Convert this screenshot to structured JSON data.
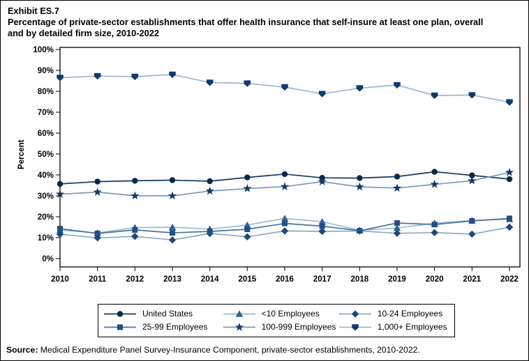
{
  "exhibit_label": "Exhibit ES.7",
  "title_line1": "Percentage of private-sector establishments that offer health insurance that self-insure at least one plan, overall",
  "title_line2": "and by detailed firm size, 2010-2022",
  "source": {
    "label": "Source:",
    "text": " Medical Expenditure Panel Survey-Insurance Component, private-sector establishments, 2010-2022."
  },
  "chart_data": {
    "type": "line",
    "title": "Percentage of private-sector establishments that offer health insurance that self-insure at least one plan, overall and by detailed firm size, 2010-2022",
    "xlabel": "",
    "ylabel": "Percent",
    "ylim": [
      0,
      100
    ],
    "ytick_step": 10,
    "ytick_suffix": "%",
    "grid": false,
    "legend_position": "bottom-box",
    "x": [
      2010,
      2011,
      2012,
      2013,
      2014,
      2015,
      2016,
      2017,
      2018,
      2019,
      2020,
      2021,
      2022
    ],
    "series": [
      {
        "name": "United States",
        "marker": "circle",
        "line_color": "#16395d",
        "marker_color": "#0b2849",
        "values": [
          35.7,
          36.8,
          37.2,
          37.5,
          37.0,
          38.8,
          40.4,
          38.6,
          38.5,
          39.2,
          41.5,
          39.8,
          38.0
        ]
      },
      {
        "name": "<10 Employees",
        "marker": "triangle-up",
        "line_color": "#9fb9cf",
        "marker_color": "#2d6296",
        "values": [
          13.6,
          12.3,
          14.8,
          15.0,
          14.1,
          16.0,
          19.2,
          17.6,
          13.5,
          14.6,
          16.9,
          18.2,
          18.8
        ]
      },
      {
        "name": "10-24 Employees",
        "marker": "diamond",
        "line_color": "#8aa9c2",
        "marker_color": "#1c4979",
        "values": [
          11.6,
          9.9,
          10.6,
          8.9,
          12.0,
          10.4,
          13.2,
          13.0,
          13.2,
          12.1,
          12.4,
          11.7,
          15.0
        ]
      },
      {
        "name": "25-99 Employees",
        "marker": "square",
        "line_color": "#46749e",
        "marker_color": "#235083",
        "values": [
          14.3,
          12.0,
          13.7,
          12.3,
          13.0,
          14.0,
          16.8,
          15.5,
          13.3,
          17.0,
          16.3,
          18.0,
          19.2
        ]
      },
      {
        "name": "100-999 Employees",
        "marker": "star",
        "line_color": "#7c9cb8",
        "marker_color": "#143a64",
        "values": [
          30.8,
          31.8,
          30.0,
          30.0,
          32.3,
          33.5,
          34.4,
          36.8,
          34.3,
          33.7,
          35.5,
          37.2,
          41.2
        ]
      },
      {
        "name": "1,000+ Employees",
        "marker": "triangle-down",
        "line_color": "#9db6cc",
        "marker_color": "#0d3c6d",
        "values": [
          86.5,
          87.3,
          87.0,
          88.0,
          84.2,
          83.8,
          82.0,
          78.8,
          81.5,
          83.0,
          78.0,
          78.2,
          74.8
        ]
      }
    ]
  }
}
